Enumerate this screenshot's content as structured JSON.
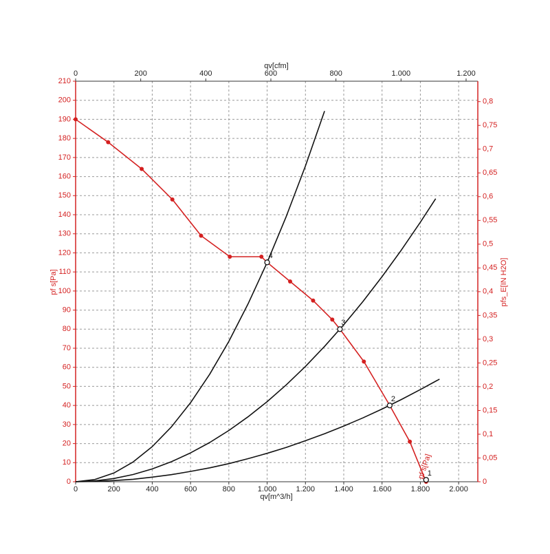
{
  "chart_data": {
    "type": "line",
    "x_label": "qv[m^3/h]",
    "x2_label": "qv[cfm]",
    "y_label": "pf s[Pa]",
    "y2_label": "pfs_E[IN H2O]",
    "xlim": [
      0,
      2100
    ],
    "xticks": [
      0,
      200,
      400,
      600,
      800,
      {
        "value": 1000,
        "label": "1.000"
      },
      {
        "value": 1200,
        "label": "1.200"
      },
      {
        "value": 1400,
        "label": "1.400"
      },
      {
        "value": 1600,
        "label": "1.600"
      },
      {
        "value": 1800,
        "label": "1.800"
      },
      {
        "value": 2000,
        "label": "2.000"
      }
    ],
    "x2lim": [
      0,
      1236
    ],
    "x2ticks": [
      0,
      200,
      400,
      600,
      800,
      {
        "value": 1000,
        "label": "1.000"
      },
      {
        "value": 1200,
        "label": "1.200"
      }
    ],
    "ylim": [
      0,
      210
    ],
    "yticks": [
      0,
      10,
      20,
      30,
      40,
      50,
      60,
      70,
      80,
      90,
      100,
      110,
      120,
      130,
      140,
      150,
      160,
      170,
      180,
      190,
      200,
      210
    ],
    "y2lim": [
      0,
      0.843
    ],
    "y2ticks": [
      0,
      {
        "value": 0.05,
        "label": "0,05"
      },
      {
        "value": 0.1,
        "label": "0,1"
      },
      {
        "value": 0.15,
        "label": "0,15"
      },
      {
        "value": 0.2,
        "label": "0,2"
      },
      {
        "value": 0.25,
        "label": "0,25"
      },
      {
        "value": 0.3,
        "label": "0,3"
      },
      {
        "value": 0.35,
        "label": "0,35"
      },
      {
        "value": 0.4,
        "label": "0,4"
      },
      {
        "value": 0.45,
        "label": "0,45"
      },
      {
        "value": 0.5,
        "label": "0,5"
      },
      {
        "value": 0.55,
        "label": "0,55"
      },
      {
        "value": 0.6,
        "label": "0,6"
      },
      {
        "value": 0.65,
        "label": "0,65"
      },
      {
        "value": 0.7,
        "label": "0,7"
      },
      {
        "value": 0.75,
        "label": "0,75"
      },
      {
        "value": 0.8,
        "label": "0,8"
      }
    ],
    "grid": true,
    "axis_color": "#d42020",
    "series": [
      {
        "name": "pf s[Pa]",
        "color": "#d42020",
        "markers": true,
        "x": [
          0,
          170,
          345,
          505,
          655,
          805,
          970,
          1000,
          1120,
          1240,
          1340,
          1380,
          1505,
          1640,
          1745,
          1830
        ],
        "values": [
          190,
          178,
          164,
          148,
          129,
          118,
          118,
          115,
          105,
          95,
          85,
          80,
          63,
          40,
          21,
          0
        ]
      },
      {
        "color": "#111111",
        "markers": false,
        "x": [
          0,
          100,
          200,
          300,
          400,
          500,
          600,
          700,
          800,
          900,
          1000,
          1100,
          1200,
          1300
        ],
        "values": [
          0,
          1.15,
          4.6,
          10.35,
          18.4,
          28.75,
          41.4,
          56.35,
          73.6,
          93.15,
          115,
          139.15,
          165.6,
          194.35
        ]
      },
      {
        "color": "#111111",
        "markers": false,
        "x": [
          0,
          100,
          200,
          300,
          400,
          500,
          600,
          700,
          800,
          900,
          1000,
          1100,
          1200,
          1300,
          1400,
          1500,
          1600,
          1700,
          1800,
          1880
        ],
        "values": [
          0,
          0.42,
          1.68,
          3.78,
          6.72,
          10.5,
          15.12,
          20.58,
          26.88,
          34.02,
          42,
          50.82,
          60.48,
          70.98,
          82.32,
          94.5,
          107.52,
          121.38,
          136.08,
          148.4
        ]
      },
      {
        "color": "#111111",
        "markers": false,
        "x": [
          0,
          100,
          200,
          300,
          400,
          500,
          600,
          700,
          800,
          900,
          1000,
          1100,
          1200,
          1300,
          1400,
          1500,
          1600,
          1700,
          1800,
          1900
        ],
        "values": [
          0,
          0.15,
          0.6,
          1.3,
          2.4,
          3.7,
          5.4,
          7.3,
          9.5,
          12.1,
          14.9,
          18,
          21.5,
          25.2,
          29.2,
          33.5,
          38.1,
          43.1,
          48.3,
          53.8
        ]
      }
    ],
    "points": [
      {
        "label": "1",
        "x": 1830,
        "y": 1
      },
      {
        "label": "2",
        "x": 1640,
        "y": 40
      },
      {
        "label": "3",
        "x": 1380,
        "y": 80
      },
      {
        "label": "4",
        "x": 1000,
        "y": 115
      }
    ]
  }
}
